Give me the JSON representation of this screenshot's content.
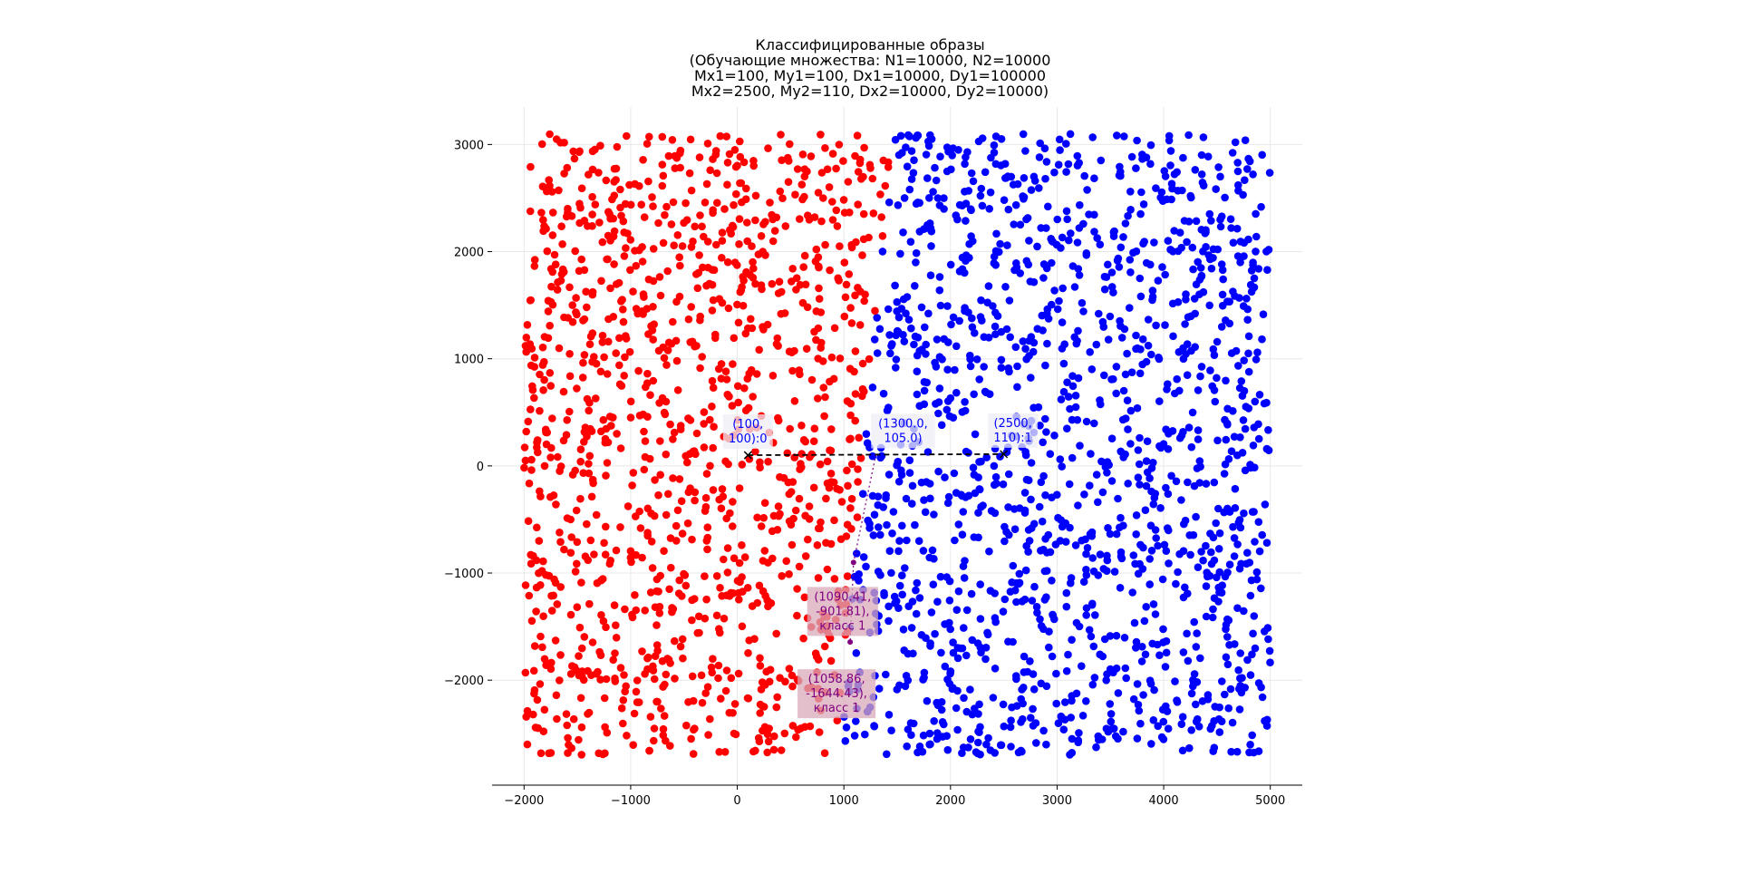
{
  "chart_data": {
    "type": "scatter",
    "title_lines": [
      "Классифицированные образы",
      "(Обучающие множества: N1=10000, N2=10000",
      "Mx1=100, My1=100, Dx1=10000, Dy1=100000",
      "Mx2=2500, My2=110, Dx2=10000, Dy2=10000)"
    ],
    "xlabel": "",
    "ylabel": "",
    "xlim": [
      -2300,
      5300
    ],
    "ylim": [
      -2980,
      3350
    ],
    "x_ticks": [
      -2000,
      -1000,
      0,
      1000,
      2000,
      3000,
      4000,
      5000
    ],
    "x_tick_labels": [
      "−2000",
      "−1000",
      "0",
      "1000",
      "2000",
      "3000",
      "4000",
      "5000"
    ],
    "y_ticks": [
      -2000,
      -1000,
      0,
      1000,
      2000,
      3000
    ],
    "y_tick_labels": [
      "−2000",
      "−1000",
      "0",
      "1000",
      "2000",
      "3000"
    ],
    "grid": true,
    "classes": [
      {
        "class": 0,
        "color": "#ff0000",
        "count_estimate": 1300
      },
      {
        "class": 1,
        "color": "#0000ff",
        "count_estimate": 1400
      }
    ],
    "decision_boundary_x_approx": {
      "top": 1450,
      "bottom": 950
    },
    "x_range_points": [
      -2000,
      5000
    ],
    "y_range_points": [
      -2700,
      3100
    ],
    "centers": [
      {
        "x": 100,
        "y": 100,
        "label": "(100,\n100):0",
        "color": "#0000ff"
      },
      {
        "x": 2500,
        "y": 110,
        "label": "(2500,\n110):1",
        "color": "#0000ff"
      }
    ],
    "midpoint": {
      "x": 1300,
      "y": 105,
      "label": "(1300.0,\n105.0)",
      "color": "#0000ff"
    },
    "test_points": [
      {
        "x": 1090.41,
        "y": -901.81,
        "label": "(1090.41,\n-901.81),\nкласс 1",
        "color": "#800080"
      },
      {
        "x": 1058.86,
        "y": -1644.43,
        "label": "(1058.86,\n-1644.43),\nкласс 1",
        "color": "#800080"
      }
    ]
  }
}
